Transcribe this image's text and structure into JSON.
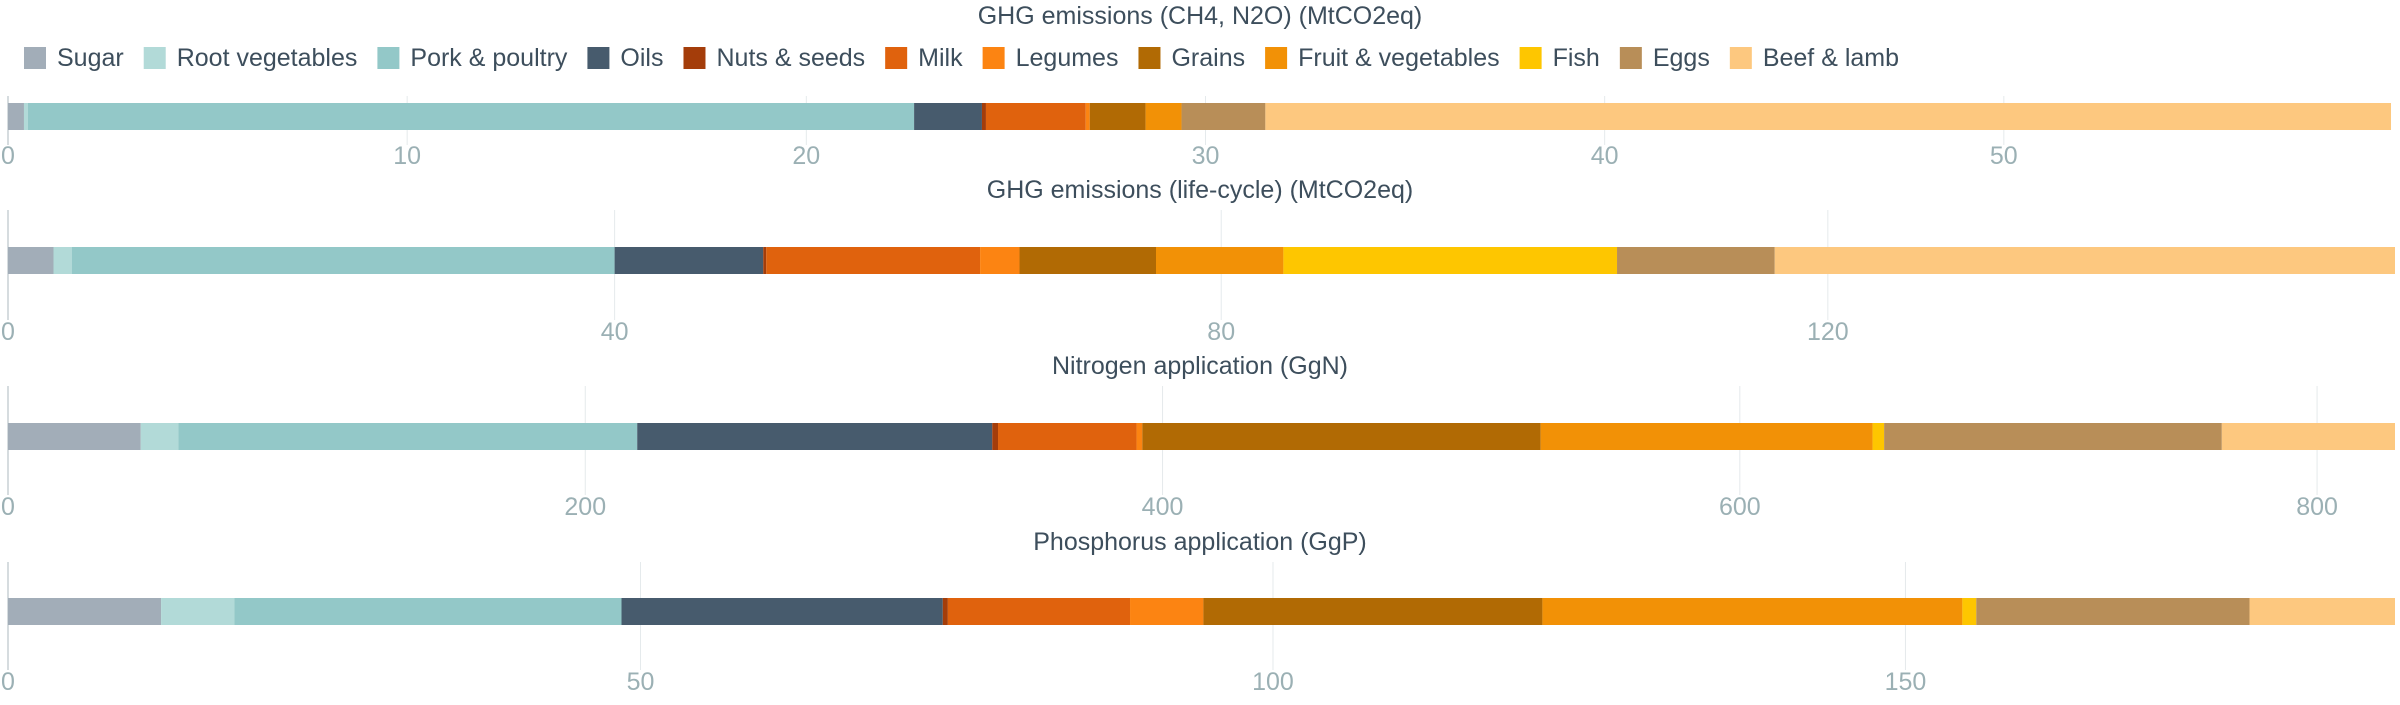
{
  "colors": {
    "Sugar": "#a2adb8",
    "Root vegetables": "#b2dad8",
    "Pork & poultry": "#93c8c8",
    "Oils": "#475b6d",
    "Nuts & seeds": "#a43d0a",
    "Milk": "#e0620d",
    "Legumes": "#fc8412",
    "Grains": "#b16a04",
    "Fruit & vegetables": "#f29106",
    "Fish": "#fec600",
    "Eggs": "#b88e58",
    "Beef & lamb": "#fdc87f",
    "title_text": "#3d4e5c",
    "tick_text": "#9bb0b4",
    "gridline": "#e5eaec",
    "axis_line": "#c8d0d4"
  },
  "chart_data": {
    "type": "bar",
    "orientation": "horizontal",
    "stacked": true,
    "legend_placement": "top-left",
    "grid": true,
    "categories": [
      "Sugar",
      "Root vegetables",
      "Pork & poultry",
      "Oils",
      "Nuts & seeds",
      "Milk",
      "Legumes",
      "Grains",
      "Fruit & vegetables",
      "Fish",
      "Eggs",
      "Beef & lamb"
    ],
    "panels": [
      {
        "title": "GHG emissions (CH4, N2O) (MtCO2eq)",
        "xlim": [
          0,
          59.8
        ],
        "ticks": [
          0,
          10,
          20,
          30,
          40,
          50
        ],
        "tick_labels": [
          "0",
          "10",
          "20",
          "30",
          "40",
          "50"
        ],
        "values": [
          0.4,
          0.1,
          22.2,
          1.7,
          0.1,
          2.5,
          0.1,
          1.4,
          0.9,
          0,
          2.1,
          28.2
        ]
      },
      {
        "title": "GHG emissions (life-cycle) (MtCO2eq)",
        "xlim": [
          0,
          157.4
        ],
        "ticks": [
          0,
          40,
          80,
          120
        ],
        "tick_labels": [
          "0",
          "40",
          "80",
          "120"
        ],
        "values": [
          3.0,
          1.2,
          35.8,
          9.8,
          0.2,
          14.1,
          2.6,
          9.0,
          8.4,
          22.0,
          10.4,
          40.9
        ]
      },
      {
        "title": "Nitrogen application (GgN)",
        "xlim": [
          0,
          827
        ],
        "ticks": [
          0,
          200,
          400,
          600,
          800
        ],
        "tick_labels": [
          "0",
          "200",
          "400",
          "600",
          "800"
        ],
        "values": [
          46,
          13,
          159,
          123,
          2,
          48,
          2,
          138,
          115,
          4,
          117,
          60
        ]
      },
      {
        "title": "Phosphorus application (GgP)",
        "xlim": [
          0,
          188.7
        ],
        "ticks": [
          0,
          50,
          100,
          150
        ],
        "tick_labels": [
          "0",
          "50",
          "100",
          "150"
        ],
        "values": [
          12.1,
          5.8,
          30.6,
          25.4,
          0.4,
          14.4,
          5.8,
          26.8,
          33.2,
          1.1,
          21.6,
          11.5
        ]
      }
    ]
  }
}
